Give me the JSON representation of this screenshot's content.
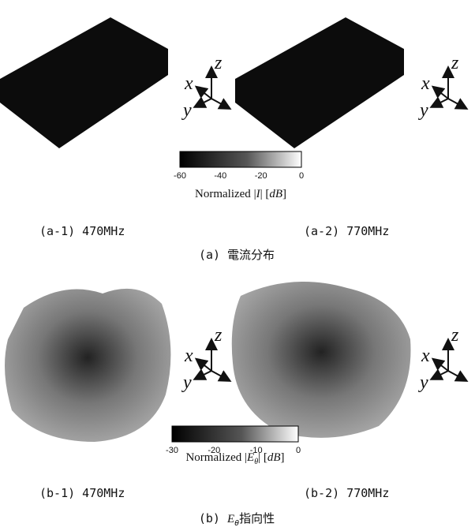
{
  "axes_labels": {
    "x": "x",
    "y": "y",
    "z": "z"
  },
  "panel_a": {
    "colorbar": {
      "ticks": [
        -60,
        -40,
        -20,
        0
      ],
      "label": {
        "prefix": "Normalized",
        "symbol": "I",
        "unit": "dB"
      }
    },
    "subfigures": [
      "(a-1) 470MHz",
      "(a-2) 770MHz"
    ],
    "caption": "(a) 電流分布"
  },
  "panel_b": {
    "colorbar": {
      "ticks": [
        -30,
        -20,
        -10,
        0
      ],
      "label": {
        "prefix": "Normalized",
        "symbol": "E",
        "subscript": "θ",
        "unit": "dB"
      }
    },
    "subfigures": [
      "(b-1) 470MHz",
      "(b-2) 770MHz"
    ],
    "caption": {
      "prefix": "(b)",
      "symbol": "E",
      "subscript": "θ",
      "suffix": "指向性"
    }
  }
}
